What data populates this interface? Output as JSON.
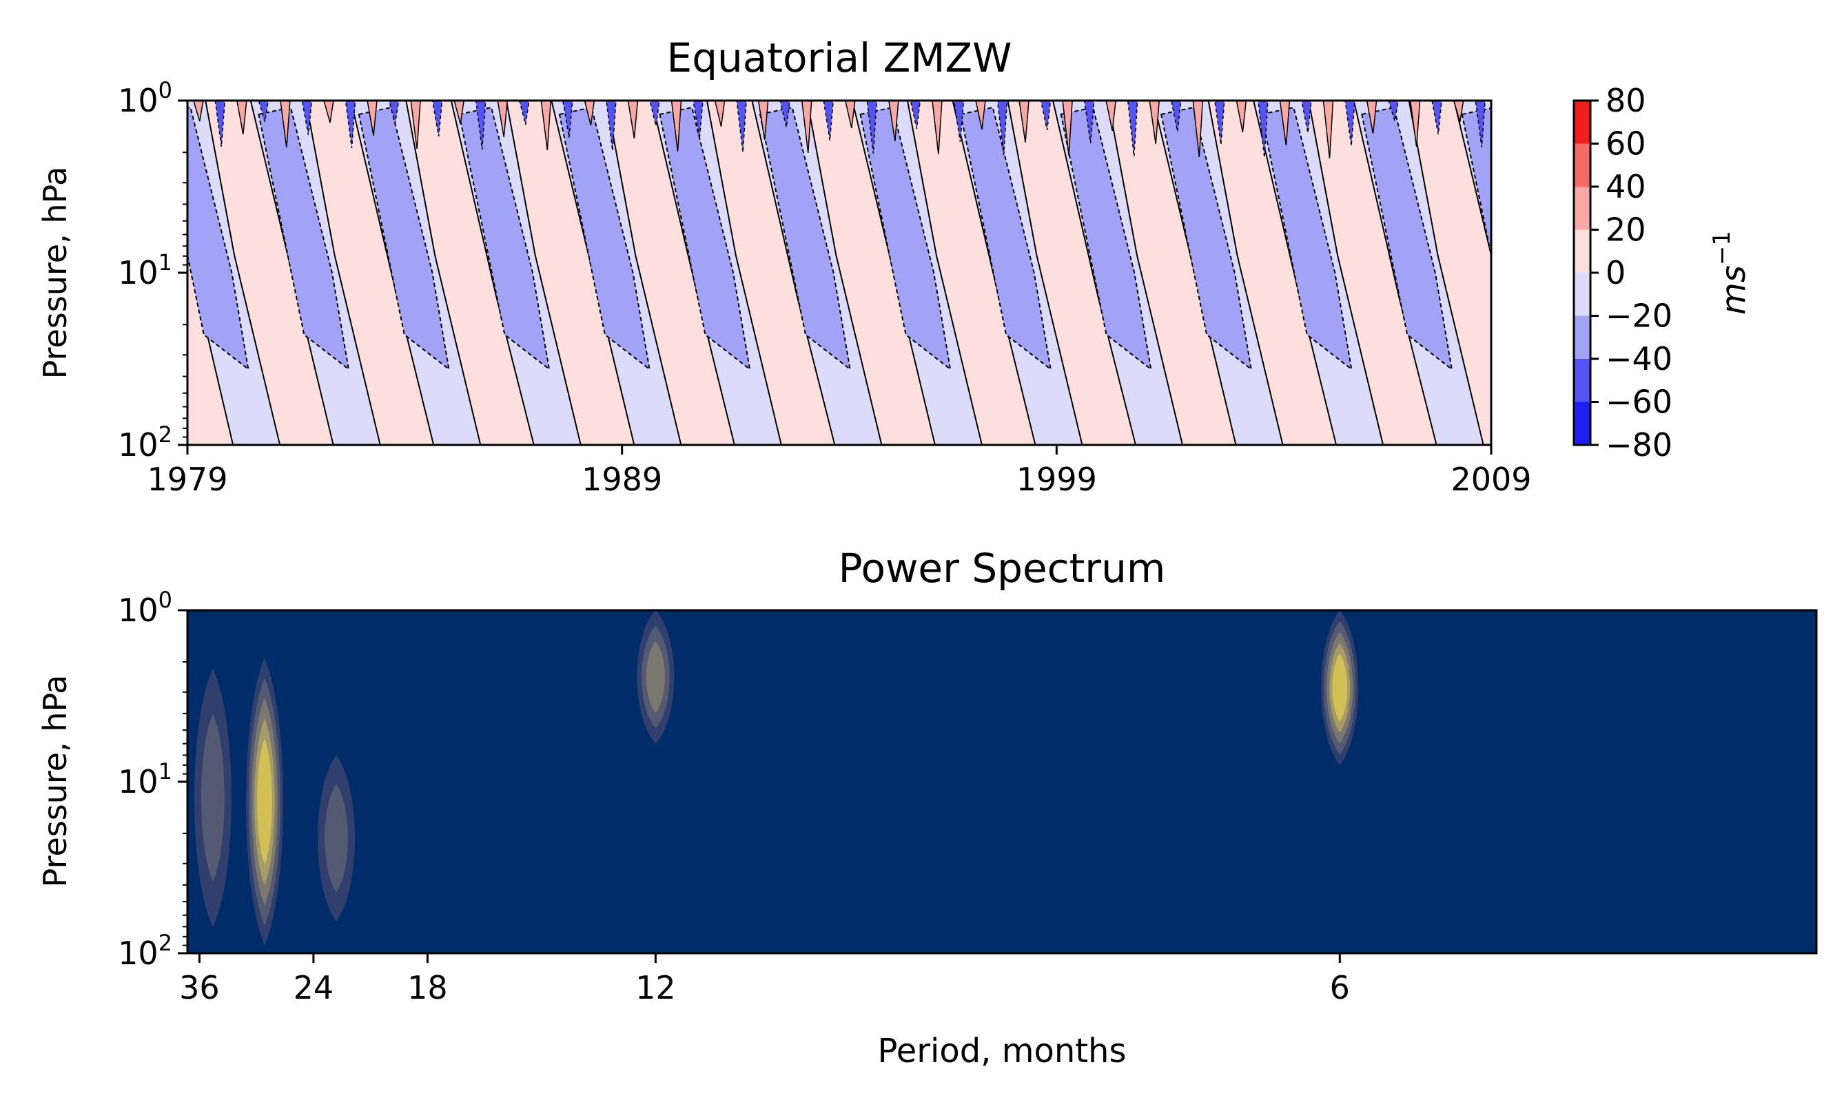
{
  "chart_data": [
    {
      "type": "heatmap",
      "title": "Equatorial ZMZW",
      "xlabel": "",
      "ylabel": "Pressure, hPa",
      "x_ticks": [
        "1979",
        "1989",
        "1999",
        "2009"
      ],
      "x_tick_values": [
        1979,
        1989,
        1999,
        2009
      ],
      "xlim": [
        1979,
        2009
      ],
      "y_scale": "log",
      "ylim": [
        100,
        1
      ],
      "y_ticks": [
        {
          "base": "10",
          "exp": "0",
          "value": 1
        },
        {
          "base": "10",
          "exp": "1",
          "value": 10
        },
        {
          "base": "10",
          "exp": "2",
          "value": 100
        }
      ],
      "colorbar": {
        "label": "ms",
        "label_exp": "−1",
        "levels": [
          -80,
          -60,
          -40,
          -20,
          0,
          20,
          40,
          60,
          80
        ],
        "tick_labels": [
          "−80",
          "−60",
          "−40",
          "−20",
          "0",
          "20",
          "40",
          "60",
          "80"
        ],
        "colors": [
          "#1f1ff5",
          "#5454f5",
          "#a2a2f7",
          "#dcdcfa",
          "#fde0de",
          "#f8a9a6",
          "#f46b68",
          "#f21d1d"
        ]
      },
      "qbo_period_months": 28,
      "descent_layer_count": 13
    },
    {
      "type": "heatmap",
      "title": "Power Spectrum",
      "xlabel": "Period, months",
      "ylabel": "Pressure, hPa",
      "x_ticks": [
        "36",
        "24",
        "18",
        "12",
        "6"
      ],
      "x_tick_values": [
        36,
        24,
        18,
        12,
        6
      ],
      "y_scale": "log",
      "ylim": [
        100,
        1
      ],
      "y_ticks": [
        {
          "base": "10",
          "exp": "0",
          "value": 1
        },
        {
          "base": "10",
          "exp": "1",
          "value": 10
        },
        {
          "base": "10",
          "exp": "2",
          "value": 100
        }
      ],
      "background_color": "#002c69",
      "peaks": [
        {
          "period": 34,
          "pressure_top": 2.2,
          "pressure_bottom": 70,
          "intensity": 0.4
        },
        {
          "period": 28,
          "pressure_top": 1.9,
          "pressure_bottom": 90,
          "intensity": 1.0
        },
        {
          "period": 22.5,
          "pressure_top": 7,
          "pressure_bottom": 65,
          "intensity": 0.35
        },
        {
          "period": 12,
          "pressure_top": 1,
          "pressure_bottom": 6,
          "intensity": 0.55
        },
        {
          "period": 6,
          "pressure_top": 1,
          "pressure_bottom": 8,
          "intensity": 1.0
        }
      ]
    }
  ]
}
